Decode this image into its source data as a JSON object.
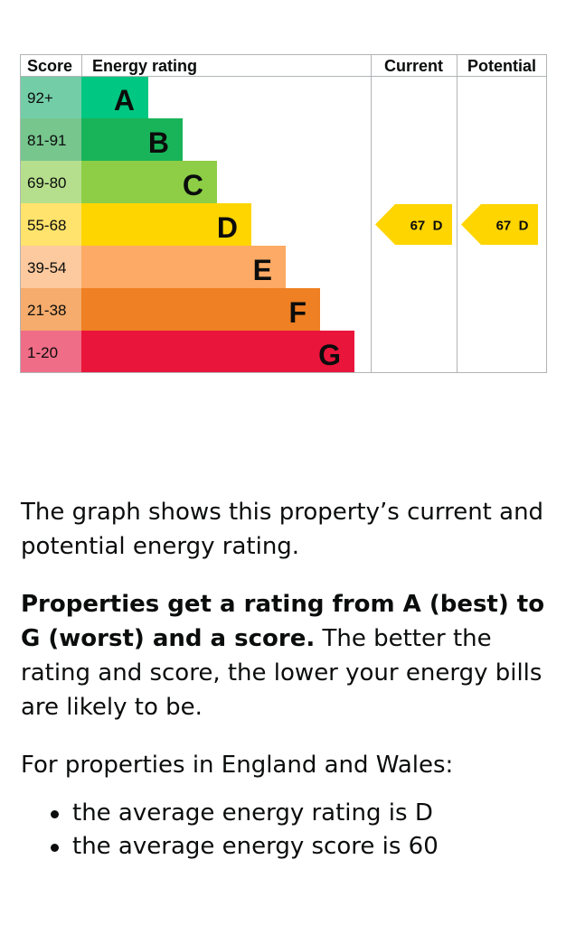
{
  "chart_data": {
    "type": "table",
    "headers": {
      "score": "Score",
      "energy_rating": "Energy rating",
      "current": "Current",
      "potential": "Potential"
    },
    "bands": [
      {
        "score": "92+",
        "letter": "A",
        "color": "#00c781",
        "score_bg": "#73cea8"
      },
      {
        "score": "81-91",
        "letter": "B",
        "color": "#19b459",
        "score_bg": "#77c68e"
      },
      {
        "score": "69-80",
        "letter": "C",
        "color": "#8dce46",
        "score_bg": "#b5df8c"
      },
      {
        "score": "55-68",
        "letter": "D",
        "color": "#ffd500",
        "score_bg": "#ffe36c"
      },
      {
        "score": "39-54",
        "letter": "E",
        "color": "#fcaa65",
        "score_bg": "#fdc99e"
      },
      {
        "score": "21-38",
        "letter": "F",
        "color": "#ef8023",
        "score_bg": "#f5ac6c"
      },
      {
        "score": "1-20",
        "letter": "G",
        "color": "#e9153b",
        "score_bg": "#ef6d86"
      }
    ],
    "current": {
      "score": 67,
      "letter": "D",
      "label": "67  D"
    },
    "potential": {
      "score": 67,
      "letter": "D",
      "label": "67  D"
    }
  },
  "text": {
    "p1": "The graph shows this property’s current and potential energy rating.",
    "p2_bold": "Properties get a rating from A (best) to G (worst) and a score.",
    "p2_rest": " The better the rating and score, the lower your energy bills are likely to be.",
    "p3": "For properties in England and Wales:",
    "bullets": [
      "the average energy rating is D",
      "the average energy score is 60"
    ]
  }
}
